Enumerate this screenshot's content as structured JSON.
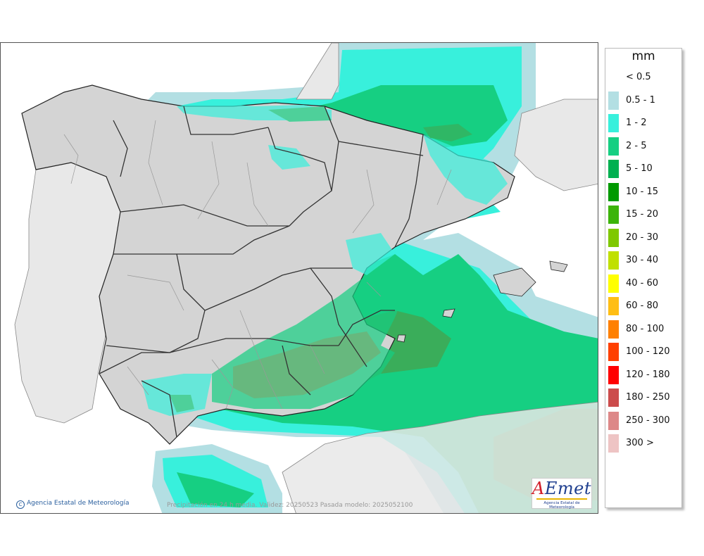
{
  "legend": {
    "unit": "mm",
    "items": [
      {
        "label": "< 0.5",
        "color": "#ffffff"
      },
      {
        "label": "0.5 - 1",
        "color": "#b3dfe3"
      },
      {
        "label": "1 - 2",
        "color": "#38f0dc"
      },
      {
        "label": "2 - 5",
        "color": "#16cf82"
      },
      {
        "label": "5 - 10",
        "color": "#00b050"
      },
      {
        "label": "10 - 15",
        "color": "#009a00"
      },
      {
        "label": "15 - 20",
        "color": "#3cb40a"
      },
      {
        "label": "20 - 30",
        "color": "#7fc800"
      },
      {
        "label": "30 - 40",
        "color": "#c0e000"
      },
      {
        "label": "40 - 60",
        "color": "#ffff00"
      },
      {
        "label": "60 - 80",
        "color": "#ffbe14"
      },
      {
        "label": "80 - 100",
        "color": "#ff8000"
      },
      {
        "label": "100 - 120",
        "color": "#ff4000"
      },
      {
        "label": "120 - 180",
        "color": "#ff0000"
      },
      {
        "label": "180 - 250",
        "color": "#cc4c4c"
      },
      {
        "label": "250 - 300",
        "color": "#dd8888"
      },
      {
        "label": "300 >",
        "color": "#eec4c4"
      }
    ]
  },
  "footer": {
    "copyright": "Agencia Estatal de Meteorología",
    "caption": "Precipitación en 24 h media. Validez: 20250523 Pasada modelo: 2025052100"
  },
  "logo": {
    "word_a": "A",
    "word_rest": "Emet",
    "subtitle": "Agencia Estatal de Meteorología"
  },
  "colors": {
    "sea": "#ffffff",
    "land_spain": "#d4d4d4",
    "land_other": "#e8e8e8",
    "borders": "#222222"
  }
}
